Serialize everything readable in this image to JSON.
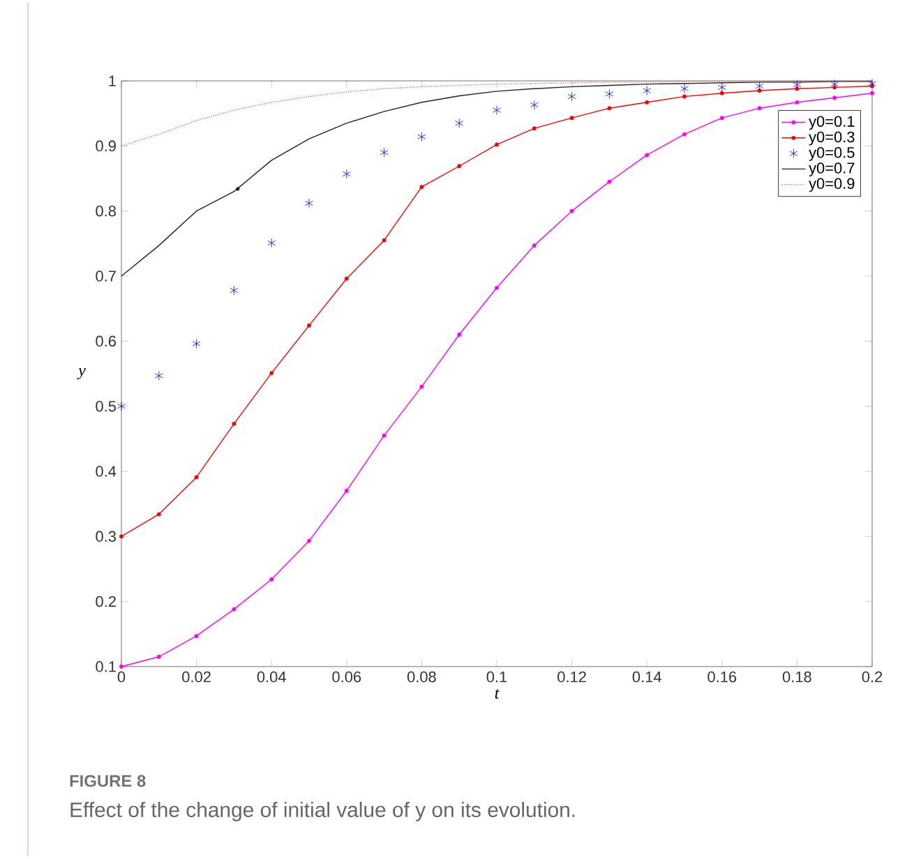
{
  "chart_data": {
    "type": "line",
    "xlabel": "t",
    "ylabel": "y",
    "annotations": [
      "FIGURE 8",
      "Effect of the change of initial value of y on its evolution."
    ],
    "x": [
      0,
      0.01,
      0.02,
      0.03,
      0.04,
      0.05,
      0.06,
      0.07,
      0.08,
      0.09,
      0.1,
      0.11,
      0.12,
      0.13,
      0.14,
      0.15,
      0.16,
      0.17,
      0.18,
      0.19,
      0.2
    ],
    "xlim": [
      0,
      0.2
    ],
    "xticks": [
      0,
      0.02,
      0.04,
      0.06,
      0.08,
      0.1,
      0.12,
      0.14,
      0.16,
      0.18,
      0.2
    ],
    "ylim": [
      0.1,
      1
    ],
    "yticks": [
      0.1,
      0.2,
      0.3,
      0.4,
      0.5,
      0.6,
      0.7,
      0.8,
      0.9,
      1
    ],
    "legend": "top right",
    "grid": false,
    "series": [
      {
        "name": "y0=0.1",
        "color": "#ff00ff",
        "marker": "circle",
        "line_style": "solid",
        "values": [
          0.1,
          0.115,
          0.147,
          0.188,
          0.234,
          0.293,
          0.37,
          0.455,
          0.53,
          0.61,
          0.682,
          0.747,
          0.8,
          0.845,
          0.886,
          0.918,
          0.943,
          0.958,
          0.967,
          0.974,
          0.981
        ]
      },
      {
        "name": "y0=0.3",
        "color": "#ff0000",
        "marker": "circle",
        "line_style": "solid",
        "values": [
          0.3,
          0.334,
          0.391,
          0.473,
          0.551,
          0.624,
          0.696,
          0.755,
          0.837,
          0.869,
          0.902,
          0.927,
          0.943,
          0.958,
          0.967,
          0.976,
          0.981,
          0.985,
          0.988,
          0.99,
          0.992
        ]
      },
      {
        "name": "y0=0.5",
        "type": "scatter",
        "color": "#0000ff",
        "marker": "cross",
        "values": [
          0.5,
          0.547,
          0.596,
          0.678,
          0.751,
          0.812,
          0.857,
          0.89,
          0.914,
          0.935,
          0.955,
          0.963,
          0.976,
          0.98,
          0.985,
          0.988,
          0.99,
          0.992,
          0.994,
          0.995,
          0.996
        ]
      },
      {
        "name": "y0=0.7",
        "color": "#222222",
        "line_style": "solid",
        "values": [
          0.7,
          0.747,
          0.8,
          0.83,
          0.878,
          0.911,
          0.935,
          0.953,
          0.967,
          0.977,
          0.984,
          0.988,
          0.991,
          0.993,
          0.995,
          0.996,
          0.997,
          0.998,
          0.998,
          0.999,
          0.999
        ]
      },
      {
        "name": "y0=0.9",
        "color": "#e06060",
        "line_style": "dotted",
        "values": [
          0.9,
          0.918,
          0.939,
          0.955,
          0.967,
          0.976,
          0.983,
          0.988,
          0.991,
          0.993,
          0.995,
          0.996,
          0.997,
          0.998,
          0.998,
          0.999,
          0.999,
          0.999,
          1,
          1,
          1
        ]
      },
      {
        "type": "scatter",
        "color": "#111111",
        "marker": "circle",
        "x": [
          0.031
        ],
        "values": [
          0.834
        ]
      }
    ]
  }
}
